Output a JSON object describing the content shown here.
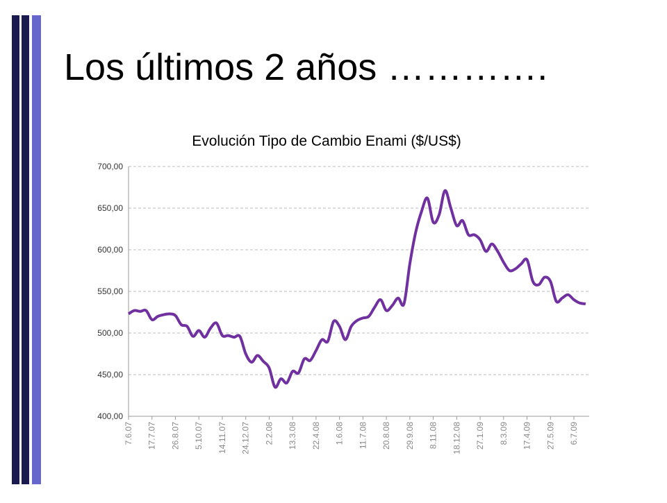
{
  "slide_title": "Los últimos 2 años ………….",
  "chart_data": {
    "type": "line",
    "title": "Evolución Tipo de Cambio Enami ($/US$)",
    "categories": [
      "7.6.07",
      null,
      null,
      null,
      "17.7.07",
      null,
      null,
      null,
      "26.8.07",
      null,
      null,
      null,
      "5.10.07",
      null,
      null,
      null,
      "14.11.07",
      null,
      null,
      null,
      "24.12.07",
      null,
      null,
      null,
      "2.2.08",
      null,
      null,
      null,
      "13.3.08",
      null,
      null,
      null,
      "22.4.08",
      null,
      null,
      null,
      "1.6.08",
      null,
      null,
      null,
      "11.7.08",
      null,
      null,
      null,
      "20.8.08",
      null,
      null,
      null,
      "29.9.08",
      null,
      null,
      null,
      "8.11.08",
      null,
      null,
      null,
      "18.12.08",
      null,
      null,
      null,
      "27.1.09",
      null,
      null,
      null,
      "8.3.09",
      null,
      null,
      null,
      "17.4.09",
      null,
      null,
      null,
      "27.5.09",
      null,
      null,
      null,
      "6.7.09",
      null,
      null
    ],
    "series": [
      {
        "name": "Tipo de Cambio",
        "color": "#7030a0",
        "values": [
          523,
          527,
          526,
          527,
          516,
          520,
          522,
          523,
          521,
          510,
          508,
          496,
          503,
          495,
          506,
          512,
          497,
          497,
          495,
          496,
          475,
          465,
          473,
          466,
          458,
          435,
          445,
          440,
          454,
          452,
          469,
          467,
          479,
          492,
          490,
          514,
          508,
          492,
          508,
          515,
          518,
          520,
          531,
          540,
          527,
          533,
          542,
          535,
          583,
          621,
          646,
          662,
          633,
          642,
          671,
          650,
          629,
          635,
          618,
          618,
          612,
          598,
          607,
          598,
          585,
          575,
          577,
          583,
          588,
          562,
          558,
          567,
          562,
          538,
          542,
          546,
          540,
          536,
          535
        ]
      }
    ],
    "ylim": [
      400,
      700
    ],
    "yticks": [
      {
        "value": 400,
        "label": "400,00"
      },
      {
        "value": 450,
        "label": "450,00"
      },
      {
        "value": 500,
        "label": "500,00"
      },
      {
        "value": 550,
        "label": "550,00"
      },
      {
        "value": 600,
        "label": "600,00"
      },
      {
        "value": 650,
        "label": "650,00"
      },
      {
        "value": 700,
        "label": "700,00"
      }
    ],
    "grid": true
  }
}
